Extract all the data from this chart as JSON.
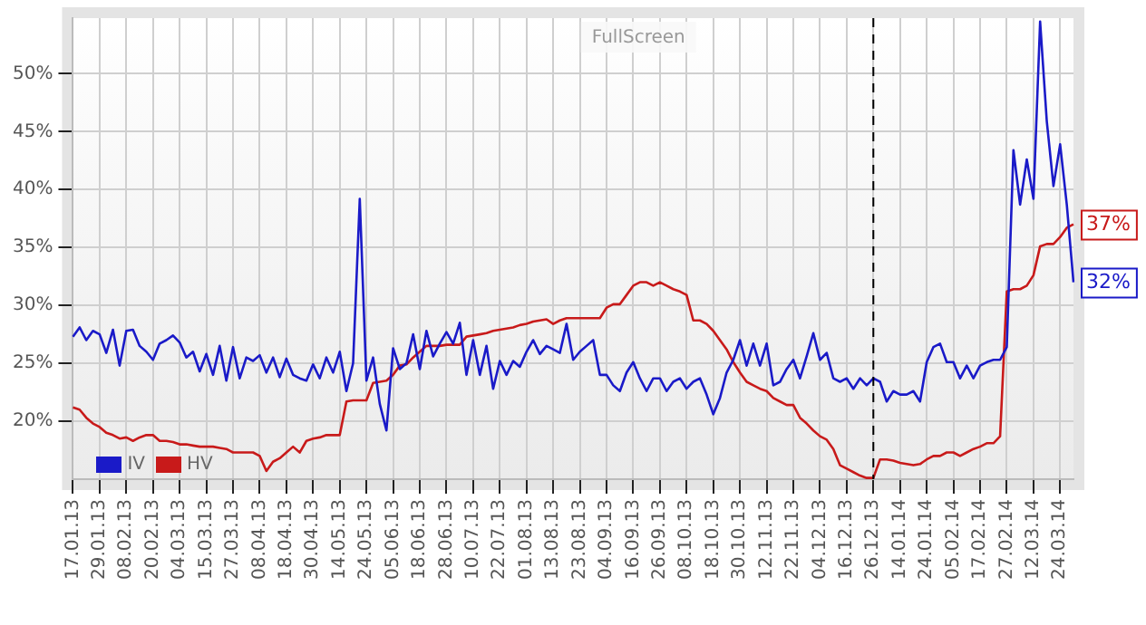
{
  "chart_data": {
    "type": "line",
    "categories": [
      "17.01.13",
      null,
      null,
      null,
      "29.01.13",
      null,
      null,
      null,
      "08.02.13",
      null,
      null,
      null,
      "20.02.13",
      null,
      null,
      null,
      "04.03.13",
      null,
      null,
      null,
      "15.03.13",
      null,
      null,
      null,
      "27.03.13",
      null,
      null,
      null,
      "08.04.13",
      null,
      null,
      null,
      "18.04.13",
      null,
      null,
      null,
      "30.04.13",
      null,
      null,
      null,
      "14.05.13",
      null,
      null,
      null,
      "24.05.13",
      null,
      null,
      null,
      "05.06.13",
      null,
      null,
      null,
      "18.06.13",
      null,
      null,
      null,
      "28.06.13",
      null,
      null,
      null,
      "10.07.13",
      null,
      null,
      null,
      "22.07.13",
      null,
      null,
      null,
      "01.08.13",
      null,
      null,
      null,
      "13.08.13",
      null,
      null,
      null,
      "23.08.13",
      null,
      null,
      null,
      "04.09.13",
      null,
      null,
      null,
      "16.09.13",
      null,
      null,
      null,
      "26.09.13",
      null,
      null,
      null,
      "08.10.13",
      null,
      null,
      null,
      "18.10.13",
      null,
      null,
      null,
      "30.10.13",
      null,
      null,
      null,
      "12.11.13",
      null,
      null,
      null,
      "22.11.13",
      null,
      null,
      null,
      "04.12.13",
      null,
      null,
      null,
      "16.12.13",
      null,
      null,
      null,
      "26.12.13",
      null,
      null,
      null,
      "14.01.14",
      null,
      null,
      null,
      "24.01.14",
      null,
      null,
      null,
      "05.02.14",
      null,
      null,
      null,
      "17.02.14",
      null,
      null,
      null,
      "27.02.14",
      null,
      null,
      null,
      "12.03.14",
      null,
      null,
      null,
      "24.03.14",
      null,
      null
    ],
    "series": [
      {
        "name": "IV",
        "color": "#1a1ac8",
        "values": [
          27.3,
          28.1,
          27.0,
          27.8,
          27.5,
          25.9,
          27.9,
          24.8,
          27.8,
          27.9,
          26.5,
          26.0,
          25.3,
          26.7,
          27.0,
          27.4,
          26.8,
          25.5,
          26.0,
          24.3,
          25.8,
          24.0,
          26.5,
          23.5,
          26.4,
          23.7,
          25.5,
          25.2,
          25.7,
          24.2,
          25.5,
          23.8,
          25.4,
          24.0,
          23.7,
          23.5,
          24.9,
          23.7,
          25.5,
          24.2,
          26.0,
          22.6,
          25.0,
          39.2,
          23.5,
          25.5,
          21.5,
          19.2,
          26.3,
          24.5,
          25.0,
          27.5,
          24.5,
          27.8,
          25.6,
          26.7,
          27.7,
          26.7,
          28.5,
          24.0,
          27.0,
          24.0,
          26.5,
          22.8,
          25.2,
          24.0,
          25.2,
          24.7,
          26.0,
          27.0,
          25.8,
          26.5,
          26.2,
          25.9,
          28.4,
          25.3,
          26.0,
          26.5,
          27.0,
          24.0,
          24.0,
          23.1,
          22.6,
          24.2,
          25.1,
          23.7,
          22.6,
          23.7,
          23.7,
          22.6,
          23.4,
          23.7,
          22.8,
          23.4,
          23.7,
          22.3,
          20.6,
          22.0,
          24.2,
          25.3,
          27.0,
          24.8,
          26.7,
          24.8,
          26.7,
          23.1,
          23.4,
          24.5,
          25.3,
          23.7,
          25.6,
          27.6,
          25.3,
          25.9,
          23.7,
          23.4,
          23.7,
          22.8,
          23.7,
          23.1,
          23.7,
          23.4,
          21.7,
          22.6,
          22.3,
          22.3,
          22.6,
          21.7,
          25.1,
          26.4,
          26.7,
          25.1,
          25.1,
          23.7,
          24.8,
          23.7,
          24.8,
          25.1,
          25.3,
          25.3,
          26.4,
          43.4,
          38.7,
          42.6,
          39.2,
          54.5,
          45.9,
          40.3,
          43.9,
          38.7,
          32
        ],
        "value_labels": [
          null,
          null,
          null,
          null,
          null,
          null,
          null,
          null,
          null,
          null,
          null,
          null,
          null,
          null,
          null,
          null,
          null,
          null,
          null,
          null,
          null,
          null,
          null,
          null,
          null,
          null,
          null,
          null,
          null,
          null,
          null,
          null,
          null,
          null,
          null,
          null,
          null,
          null,
          null,
          null,
          null,
          null,
          null,
          null,
          null,
          null,
          null,
          null,
          null,
          null,
          null,
          null,
          null,
          null,
          null,
          null,
          null,
          null,
          null,
          null,
          null,
          null,
          null,
          null,
          null,
          null,
          null,
          null,
          null,
          null,
          null,
          null,
          null,
          null,
          null,
          null,
          null,
          null,
          null,
          null,
          null,
          null,
          null,
          null,
          null,
          null,
          null,
          null,
          null,
          null,
          null,
          null,
          null,
          null,
          null,
          null,
          null,
          null,
          null,
          null,
          null,
          null,
          null,
          null,
          null,
          null,
          null,
          null,
          null,
          null,
          null,
          null,
          null,
          null,
          null,
          null,
          null,
          null,
          null,
          null,
          null,
          null,
          null,
          null,
          null,
          null,
          null,
          null,
          null,
          null,
          null,
          null,
          null,
          null,
          null,
          null,
          null,
          null,
          null,
          null,
          null,
          null,
          null,
          null,
          null,
          null,
          null,
          null,
          null,
          null,
          "32%"
        ]
      },
      {
        "name": "HV",
        "color": "#c81a1a",
        "values": [
          21.2,
          21.0,
          20.3,
          19.8,
          19.5,
          19.0,
          18.8,
          18.5,
          18.6,
          18.3,
          18.6,
          18.8,
          18.8,
          18.3,
          18.3,
          18.2,
          18.0,
          18.0,
          17.9,
          17.8,
          17.8,
          17.8,
          17.7,
          17.6,
          17.3,
          17.3,
          17.3,
          17.3,
          17.0,
          15.7,
          16.5,
          16.8,
          17.3,
          17.8,
          17.3,
          18.3,
          18.5,
          18.6,
          18.8,
          18.8,
          18.8,
          21.7,
          21.8,
          21.8,
          21.8,
          23.3,
          23.4,
          23.5,
          24.0,
          24.8,
          24.9,
          25.5,
          26.0,
          26.5,
          26.5,
          26.5,
          26.6,
          26.6,
          26.6,
          27.3,
          27.4,
          27.5,
          27.6,
          27.8,
          27.9,
          28.0,
          28.1,
          28.3,
          28.4,
          28.6,
          28.7,
          28.8,
          28.4,
          28.7,
          28.9,
          28.9,
          28.9,
          28.9,
          28.9,
          28.9,
          29.8,
          30.1,
          30.1,
          30.9,
          31.7,
          32.0,
          32.0,
          31.7,
          32.0,
          31.7,
          31.4,
          31.2,
          30.9,
          28.7,
          28.7,
          28.4,
          27.8,
          27.0,
          26.2,
          25.1,
          24.2,
          23.4,
          23.1,
          22.8,
          22.6,
          22.0,
          21.7,
          21.4,
          21.4,
          20.3,
          19.8,
          19.2,
          18.7,
          18.4,
          17.6,
          16.2,
          15.9,
          15.6,
          15.3,
          15.1,
          15.1,
          16.7,
          16.7,
          16.6,
          16.4,
          16.3,
          16.2,
          16.3,
          16.7,
          17.0,
          17.0,
          17.3,
          17.3,
          17.0,
          17.3,
          17.6,
          17.8,
          18.1,
          18.1,
          18.7,
          31.2,
          31.4,
          31.4,
          31.7,
          32.6,
          35.1,
          35.3,
          35.3,
          35.9,
          36.7,
          37
        ],
        "value_labels": [
          null,
          null,
          null,
          null,
          null,
          null,
          null,
          null,
          null,
          null,
          null,
          null,
          null,
          null,
          null,
          null,
          null,
          null,
          null,
          null,
          null,
          null,
          null,
          null,
          null,
          null,
          null,
          null,
          null,
          null,
          null,
          null,
          null,
          null,
          null,
          null,
          null,
          null,
          null,
          null,
          null,
          null,
          null,
          null,
          null,
          null,
          null,
          null,
          null,
          null,
          null,
          null,
          null,
          null,
          null,
          null,
          null,
          null,
          null,
          null,
          null,
          null,
          null,
          null,
          null,
          null,
          null,
          null,
          null,
          null,
          null,
          null,
          null,
          null,
          null,
          null,
          null,
          null,
          null,
          null,
          null,
          null,
          null,
          null,
          null,
          null,
          null,
          null,
          null,
          null,
          null,
          null,
          null,
          null,
          null,
          null,
          null,
          null,
          null,
          null,
          null,
          null,
          null,
          null,
          null,
          null,
          null,
          null,
          null,
          null,
          null,
          null,
          null,
          null,
          null,
          null,
          null,
          null,
          null,
          null,
          null,
          null,
          null,
          null,
          null,
          null,
          null,
          null,
          null,
          null,
          null,
          null,
          null,
          null,
          null,
          null,
          null,
          null,
          null,
          null,
          null,
          null,
          null,
          null,
          null,
          null,
          null,
          null,
          null,
          null,
          "37%"
        ]
      }
    ],
    "ylim": [
      15,
      54.8
    ],
    "yticks": [
      {
        "value": 20,
        "label": "20%"
      },
      {
        "value": 25,
        "label": "25%"
      },
      {
        "value": 30,
        "label": "30%"
      },
      {
        "value": 35,
        "label": "35%"
      },
      {
        "value": 40,
        "label": "40%"
      },
      {
        "value": 45,
        "label": "45%"
      },
      {
        "value": 50,
        "label": "50%"
      }
    ],
    "grid": true,
    "legend": "bottom left",
    "marker": "none",
    "line_style": "solid",
    "ref_lines": [
      {
        "axis": "x",
        "value": "26.12.13",
        "line_style": "dashed",
        "color": "#000000"
      }
    ],
    "annotations": [
      "FullScreen"
    ]
  }
}
